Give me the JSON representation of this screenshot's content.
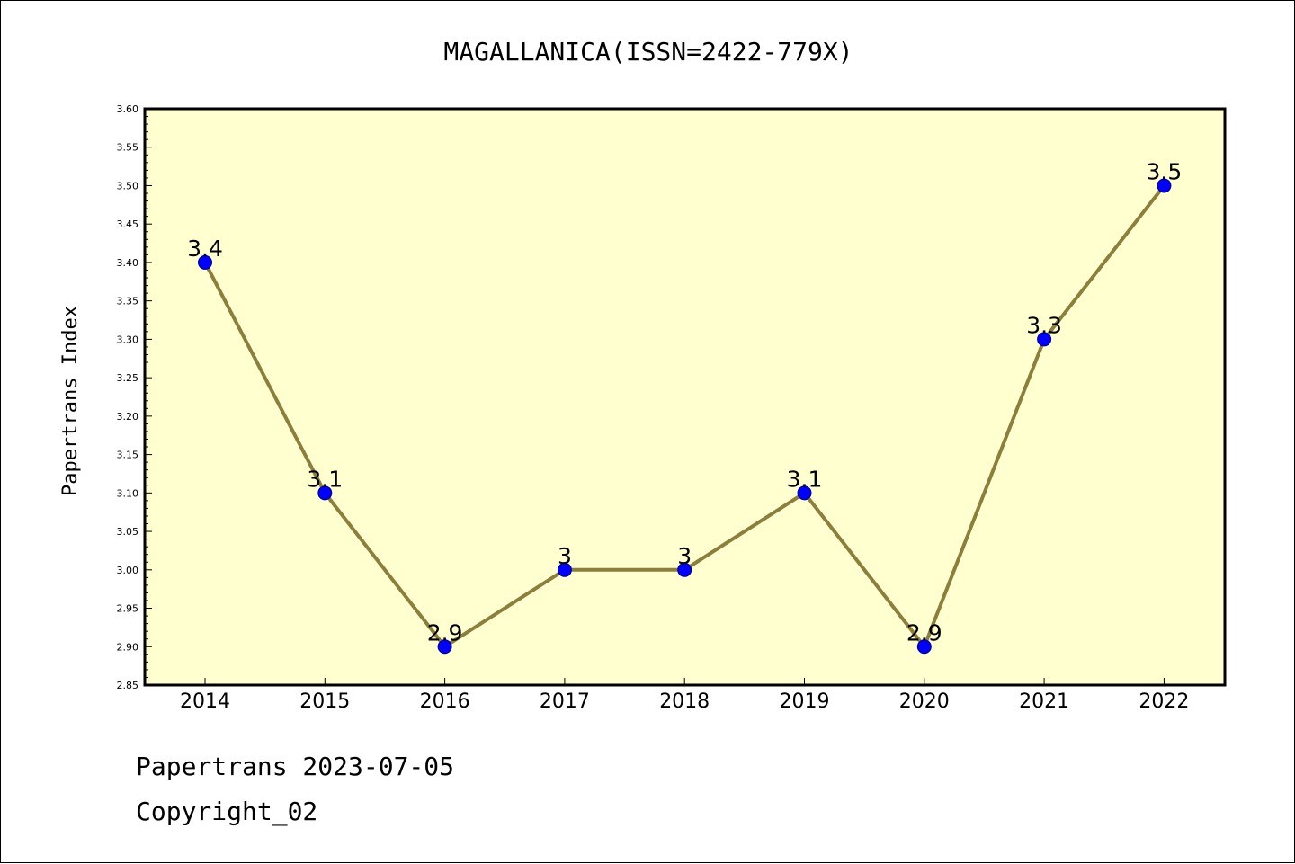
{
  "chart_data": {
    "type": "line",
    "title": "MAGALLANICA(ISSN=2422-779X)",
    "xlabel": "",
    "ylabel": "Papertrans Index",
    "categories": [
      "2014",
      "2015",
      "2016",
      "2017",
      "2018",
      "2019",
      "2020",
      "2021",
      "2022"
    ],
    "series": [
      {
        "values": [
          3.4,
          3.1,
          2.9,
          3.0,
          3.0,
          3.1,
          2.9,
          3.3,
          3.5
        ],
        "data_labels": [
          "3.4",
          "3.1",
          "2.9",
          "3",
          "3",
          "3.1",
          "2.9",
          "3.3",
          "3.5"
        ]
      }
    ],
    "ylim": [
      2.85,
      3.6
    ],
    "yticks": [
      "2.85",
      "2.90",
      "2.95",
      "3.00",
      "3.05",
      "3.10",
      "3.15",
      "3.20",
      "3.25",
      "3.30",
      "3.35",
      "3.40",
      "3.45",
      "3.50",
      "3.55",
      "3.60"
    ],
    "grid": false,
    "legend": "none",
    "colors": {
      "plot_background": "#ffffd0",
      "line": "#8b7f3b",
      "marker": "#0000ff"
    }
  },
  "footer": {
    "line1": "Papertrans 2023-07-05",
    "line2": "Copyright_02"
  }
}
